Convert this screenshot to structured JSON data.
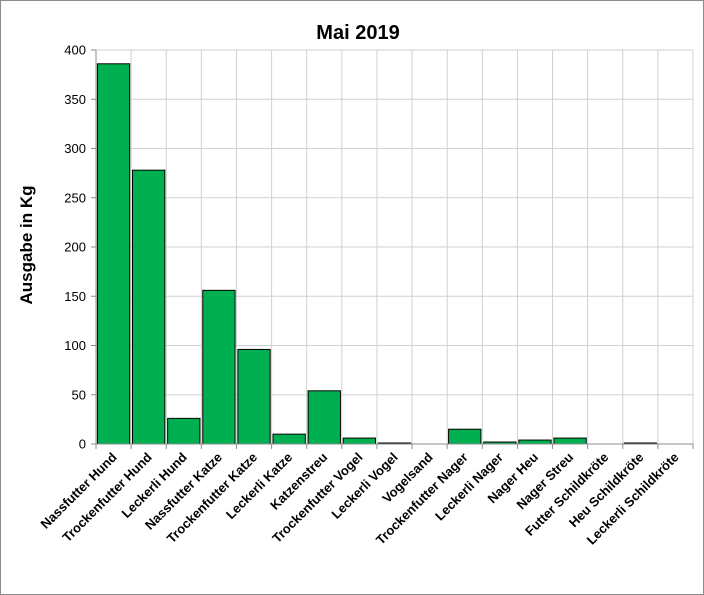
{
  "chart_data": {
    "type": "bar",
    "title": "Mai 2019",
    "xlabel": "",
    "ylabel": "Ausgabe in Kg",
    "ylim": [
      0,
      400
    ],
    "yticks": [
      0,
      50,
      100,
      150,
      200,
      250,
      300,
      350,
      400
    ],
    "grid": true,
    "legend": "none",
    "bar_color": "#00b050",
    "categories": [
      "Nassfutter Hund",
      "Trockenfutter Hund",
      "Leckerli Hund",
      "Nassfutter Katze",
      "Trockenfutter Katze",
      "Leckerli Katze",
      "Katzenstreu",
      "Trockenfutter Vogel",
      "Leckerli Vogel",
      "Vogelsand",
      "Trockenfutter Nager",
      "Leckerli Nager",
      "Nager Heu",
      "Nager Streu",
      "Futter Schildkröte",
      "Heu Schildkröte",
      "Leckerli Schildkröte"
    ],
    "values": [
      386,
      278,
      26,
      156,
      96,
      10,
      54,
      6,
      1,
      0,
      15,
      2,
      4,
      6,
      0,
      1,
      0
    ]
  }
}
